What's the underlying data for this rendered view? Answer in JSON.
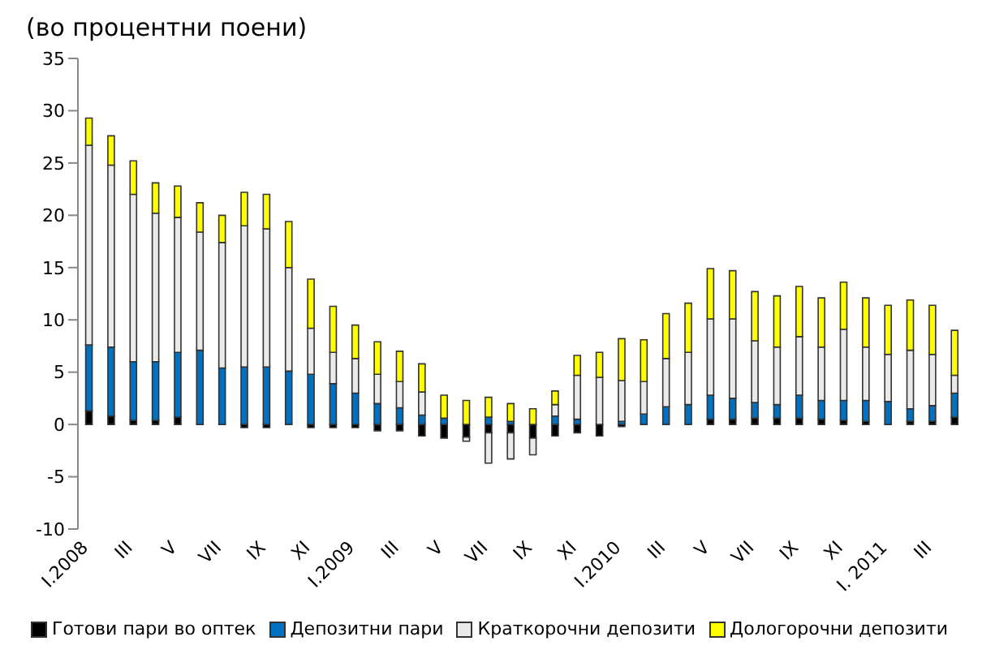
{
  "chart_data": {
    "type": "bar",
    "title": "(во процентни поени)",
    "stacked": true,
    "categories": [
      "I.2008",
      null,
      "III",
      null,
      "V",
      null,
      "VII",
      null,
      "IX",
      null,
      "XI",
      null,
      "I.2009",
      null,
      "III",
      null,
      "V",
      null,
      "VII",
      null,
      "IX",
      null,
      "XI",
      null,
      "I.2010",
      null,
      "III",
      null,
      "V",
      null,
      "VII",
      null,
      "IX",
      null,
      "XI",
      null,
      "I. 2011",
      null,
      "III",
      null
    ],
    "series": [
      {
        "name": "Готови пари во оптек",
        "color": "#000000",
        "values": [
          1.3,
          0.8,
          0.4,
          0.4,
          0.7,
          null,
          0,
          -0.3,
          -0.3,
          0,
          -0.3,
          -0.3,
          -0.3,
          -0.6,
          -0.6,
          -1.1,
          -1.3,
          -1.2,
          -0.8,
          -0.8,
          -1.3,
          -1.1,
          -0.8,
          -1.1,
          -0.2,
          null,
          0,
          0,
          0.5,
          0.5,
          0.6,
          0.6,
          0.6,
          0.5,
          0.4,
          0.3,
          0,
          0.3,
          0.3,
          0.7
        ]
      },
      {
        "name": "Депозитни пари",
        "color": "#0070c0",
        "values": [
          6.3,
          6.6,
          5.6,
          5.6,
          6.2,
          7.1,
          5.4,
          5.5,
          5.5,
          5.1,
          4.8,
          3.9,
          3.0,
          2.0,
          1.6,
          0.9,
          0.6,
          0,
          0.7,
          0.3,
          0,
          0.8,
          0.5,
          0,
          0.3,
          1.0,
          1.7,
          1.9,
          2.3,
          2.0,
          1.5,
          1.3,
          2.2,
          1.8,
          1.9,
          2.0,
          2.2,
          1.2,
          1.5,
          2.3
        ]
      },
      {
        "name": "Краткорочни депозити",
        "color": "#eaeaea",
        "values": [
          19.1,
          17.4,
          16.0,
          14.2,
          12.9,
          11.3,
          12.0,
          13.5,
          13.2,
          9.9,
          4.4,
          3.0,
          3.3,
          2.8,
          2.5,
          2.2,
          0,
          -0.4,
          -2.9,
          -2.5,
          -1.6,
          1.1,
          4.2,
          4.5,
          3.9,
          3.1,
          4.6,
          5.0,
          7.3,
          7.6,
          5.9,
          5.5,
          5.6,
          5.1,
          6.8,
          5.1,
          4.5,
          5.6,
          4.9,
          1.7
        ]
      },
      {
        "name": "Дологорочни депозити",
        "color": "#ffff00",
        "values": [
          2.6,
          2.8,
          3.2,
          2.9,
          3.0,
          2.8,
          2.6,
          3.2,
          3.3,
          4.4,
          4.7,
          4.4,
          3.2,
          3.1,
          2.9,
          2.7,
          2.2,
          2.3,
          1.9,
          1.7,
          1.5,
          1.3,
          1.9,
          2.4,
          4.0,
          4.0,
          4.3,
          4.7,
          4.8,
          4.6,
          4.7,
          4.9,
          4.8,
          4.7,
          4.5,
          4.7,
          4.7,
          4.8,
          4.7,
          4.3
        ]
      }
    ],
    "ylim": [
      -10,
      35
    ],
    "yticks": [
      -10,
      -5,
      0,
      5,
      10,
      15,
      20,
      25,
      30,
      35
    ],
    "grid": false,
    "legend": "bottom"
  }
}
